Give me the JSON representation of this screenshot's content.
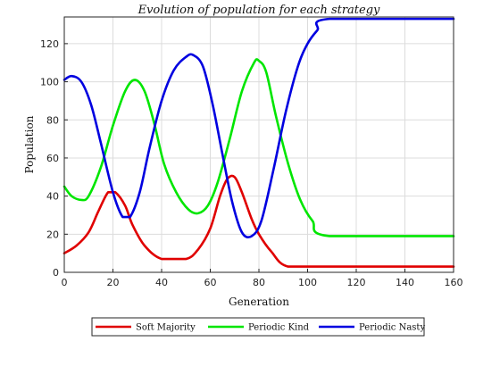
{
  "chart_data": {
    "type": "line",
    "title": "Evolution of population for each strategy",
    "xlabel": "Generation",
    "ylabel": "Population",
    "xlim": [
      0,
      160
    ],
    "ylim": [
      0,
      134
    ],
    "xticks": [
      "0",
      "20",
      "40",
      "60",
      "80",
      "100",
      "120",
      "140",
      "160"
    ],
    "yticks": [
      "0",
      "20",
      "40",
      "60",
      "80",
      "100",
      "120"
    ],
    "grid": true,
    "legend_position": "bottom",
    "series": [
      {
        "name": "Soft Majority",
        "color": "#e00000",
        "x": [
          0,
          5,
          10,
          14,
          18,
          21,
          25,
          28,
          33,
          40,
          50,
          55,
          60,
          64,
          67,
          70,
          73,
          77,
          80,
          85,
          92,
          110,
          160
        ],
        "y": [
          10,
          14,
          21,
          32,
          42,
          42,
          35,
          25,
          14,
          7,
          7,
          12,
          23,
          40,
          49,
          50,
          42,
          28,
          20,
          11,
          3,
          3,
          3
        ]
      },
      {
        "name": "Periodic Kind",
        "color": "#00e600",
        "x": [
          0,
          3,
          7,
          10,
          15,
          20,
          25,
          29,
          33,
          37,
          41,
          46,
          51,
          55,
          59,
          63,
          68,
          73,
          78,
          80,
          83,
          87,
          92,
          97,
          102,
          109,
          160
        ],
        "y": [
          45,
          40,
          38,
          40,
          55,
          77,
          95,
          101,
          95,
          78,
          57,
          42,
          33,
          31,
          35,
          47,
          70,
          95,
          110,
          111,
          105,
          82,
          57,
          38,
          27,
          19,
          19
        ]
      },
      {
        "name": "Periodic Nasty",
        "color": "#0000e0",
        "x": [
          0,
          3,
          7,
          11,
          15,
          20,
          24,
          27,
          31,
          35,
          40,
          45,
          50,
          53,
          57,
          61,
          65,
          69,
          73,
          77,
          81,
          86,
          91,
          96,
          100,
          104,
          109,
          160
        ],
        "y": [
          101,
          103,
          100,
          88,
          68,
          42,
          29,
          29,
          42,
          65,
          90,
          106,
          113,
          114,
          108,
          88,
          62,
          37,
          21,
          19,
          27,
          54,
          84,
          108,
          120,
          127,
          133,
          133
        ]
      }
    ]
  }
}
